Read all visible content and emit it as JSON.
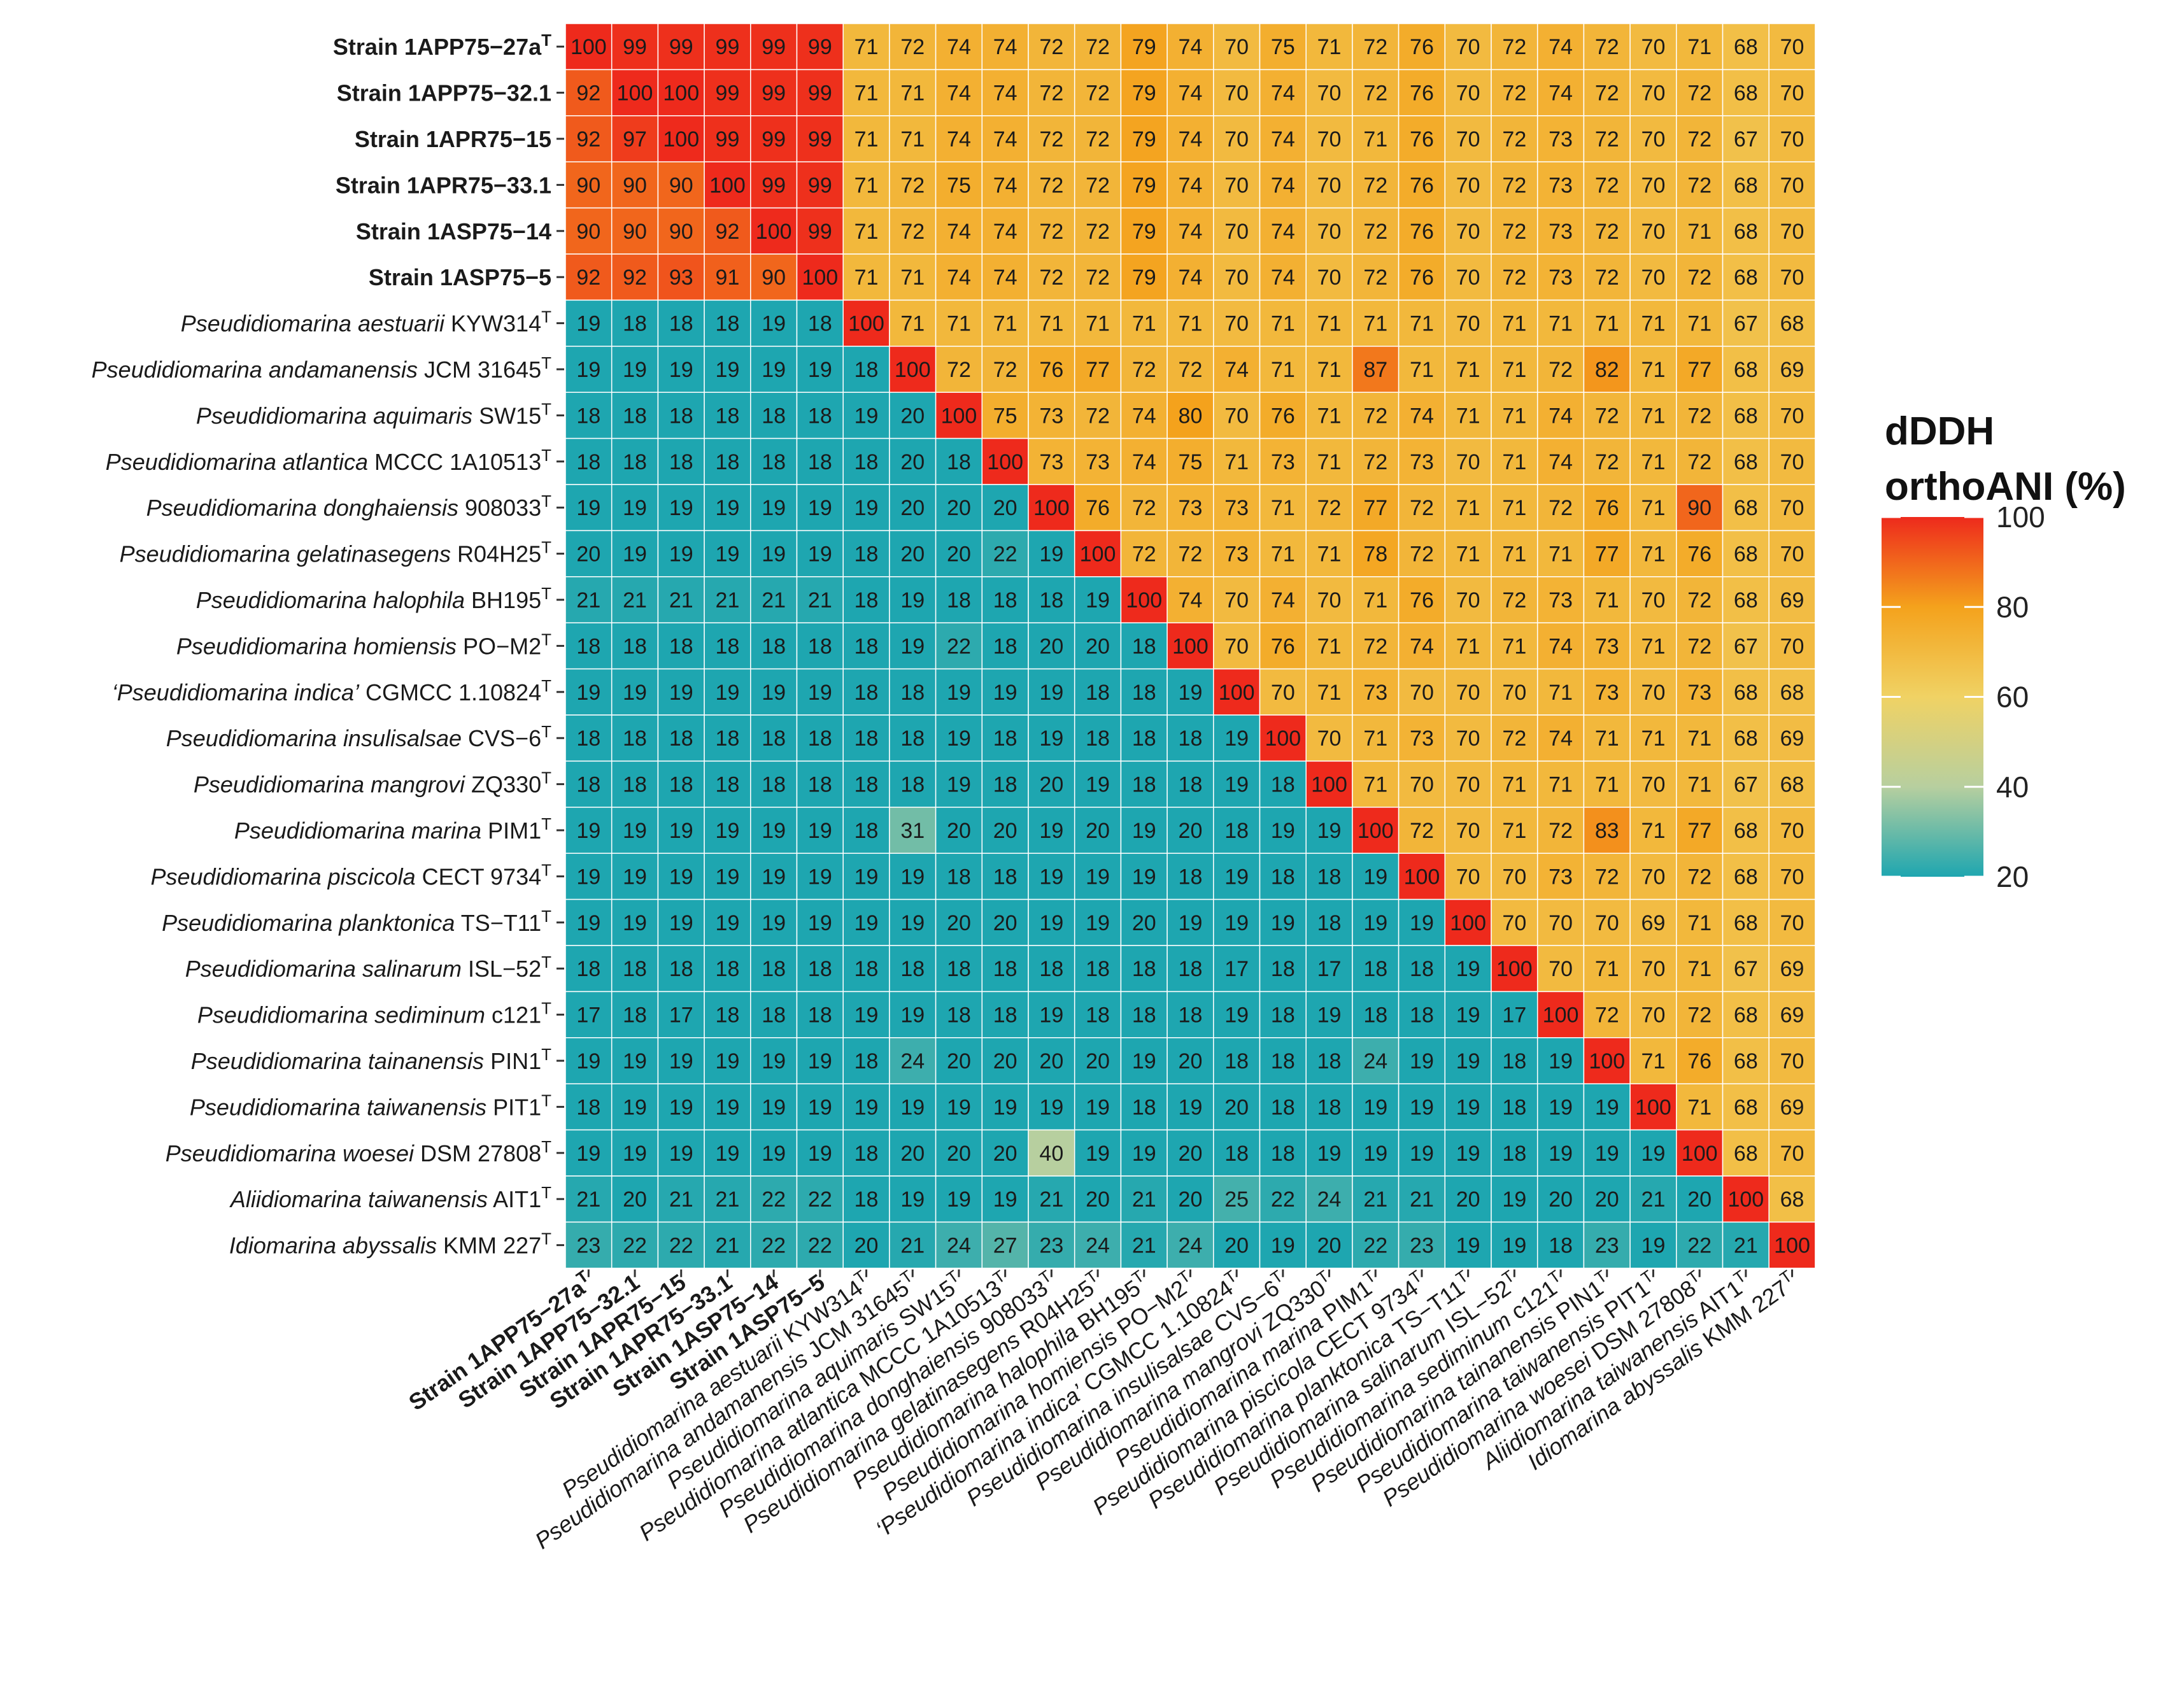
{
  "chart_data": {
    "type": "heatmap",
    "legend": {
      "title_line1": "dDDH",
      "title_line2": "orthoANI (%)",
      "ticks": [
        100,
        80,
        60,
        40,
        20
      ],
      "range": [
        20,
        100
      ],
      "placement": "right"
    },
    "colors": {
      "low": "#1ea6b0",
      "mid_low": "#b7cf9f",
      "mid": "#f0d264",
      "mid_high": "#f4a21c",
      "high": "#ee2a1c",
      "grid": "#ffffff",
      "tick": "#333333"
    },
    "labels": [
      {
        "genus": "",
        "epithet": "",
        "strain": "Strain 1APP75−27a",
        "sup": "T",
        "bold": true
      },
      {
        "genus": "",
        "epithet": "",
        "strain": "Strain 1APP75−32.1",
        "sup": "",
        "bold": true
      },
      {
        "genus": "",
        "epithet": "",
        "strain": "Strain 1APR75−15",
        "sup": "",
        "bold": true
      },
      {
        "genus": "",
        "epithet": "",
        "strain": "Strain 1APR75−33.1",
        "sup": "",
        "bold": true
      },
      {
        "genus": "",
        "epithet": "",
        "strain": "Strain 1ASP75−14",
        "sup": "",
        "bold": true
      },
      {
        "genus": "",
        "epithet": "",
        "strain": "Strain 1ASP75−5",
        "sup": "",
        "bold": true
      },
      {
        "genus": "Pseudidiomarina",
        "epithet": "aestuarii",
        "strain": "KYW314",
        "sup": "T",
        "bold": false
      },
      {
        "genus": "Pseudidiomarina",
        "epithet": "andamanensis",
        "strain": "JCM 31645",
        "sup": "T",
        "bold": false
      },
      {
        "genus": "Pseudidiomarina",
        "epithet": "aquimaris",
        "strain": "SW15",
        "sup": "T",
        "bold": false
      },
      {
        "genus": "Pseudidiomarina",
        "epithet": "atlantica",
        "strain": "MCCC 1A10513",
        "sup": "T",
        "bold": false
      },
      {
        "genus": "Pseudidiomarina",
        "epithet": "donghaiensis",
        "strain": "908033",
        "sup": "T",
        "bold": false
      },
      {
        "genus": "Pseudidiomarina",
        "epithet": "gelatinasegens",
        "strain": "R04H25",
        "sup": "T",
        "bold": false
      },
      {
        "genus": "Pseudidiomarina",
        "epithet": "halophila",
        "strain": "BH195",
        "sup": "T",
        "bold": false
      },
      {
        "genus": "Pseudidiomarina",
        "epithet": "homiensis",
        "strain": "PO−M2",
        "sup": "T",
        "bold": false
      },
      {
        "genus": "‘Pseudidiomarina",
        "epithet": "indica’",
        "strain": "CGMCC 1.10824",
        "sup": "T",
        "bold": false
      },
      {
        "genus": "Pseudidiomarina",
        "epithet": "insulisalsae",
        "strain": "CVS−6",
        "sup": "T",
        "bold": false
      },
      {
        "genus": "Pseudidiomarina",
        "epithet": "mangrovi",
        "strain": "ZQ330",
        "sup": "T",
        "bold": false
      },
      {
        "genus": "Pseudidiomarina",
        "epithet": "marina",
        "strain": "PIM1",
        "sup": "T",
        "bold": false
      },
      {
        "genus": "Pseudidiomarina",
        "epithet": "piscicola",
        "strain": "CECT 9734",
        "sup": "T",
        "bold": false
      },
      {
        "genus": "Pseudidiomarina",
        "epithet": "planktonica",
        "strain": "TS−T11",
        "sup": "T",
        "bold": false
      },
      {
        "genus": "Pseudidiomarina",
        "epithet": "salinarum",
        "strain": "ISL−52",
        "sup": "T",
        "bold": false
      },
      {
        "genus": "Pseudidiomarina",
        "epithet": "sediminum",
        "strain": "c121",
        "sup": "T",
        "bold": false
      },
      {
        "genus": "Pseudidiomarina",
        "epithet": "tainanensis",
        "strain": "PIN1",
        "sup": "T",
        "bold": false
      },
      {
        "genus": "Pseudidiomarina",
        "epithet": "taiwanensis",
        "strain": "PIT1",
        "sup": "T",
        "bold": false
      },
      {
        "genus": "Pseudidiomarina",
        "epithet": "woesei",
        "strain": "DSM 27808",
        "sup": "T",
        "bold": false
      },
      {
        "genus": "Aliidiomarina",
        "epithet": "taiwanensis",
        "strain": "AIT1",
        "sup": "T",
        "bold": false
      },
      {
        "genus": "Idiomarina",
        "epithet": "abyssalis",
        "strain": "KMM 227",
        "sup": "T",
        "bold": false
      }
    ],
    "values": [
      [
        100,
        99,
        99,
        99,
        99,
        99,
        71,
        72,
        74,
        74,
        72,
        72,
        79,
        74,
        70,
        75,
        71,
        72,
        76,
        70,
        72,
        74,
        72,
        70,
        71,
        68,
        70
      ],
      [
        92,
        100,
        100,
        99,
        99,
        99,
        71,
        71,
        74,
        74,
        72,
        72,
        79,
        74,
        70,
        74,
        70,
        72,
        76,
        70,
        72,
        74,
        72,
        70,
        72,
        68,
        70
      ],
      [
        92,
        97,
        100,
        99,
        99,
        99,
        71,
        71,
        74,
        74,
        72,
        72,
        79,
        74,
        70,
        74,
        70,
        71,
        76,
        70,
        72,
        73,
        72,
        70,
        72,
        67,
        70
      ],
      [
        90,
        90,
        90,
        100,
        99,
        99,
        71,
        72,
        75,
        74,
        72,
        72,
        79,
        74,
        70,
        74,
        70,
        72,
        76,
        70,
        72,
        73,
        72,
        70,
        72,
        68,
        70
      ],
      [
        90,
        90,
        90,
        92,
        100,
        99,
        71,
        72,
        74,
        74,
        72,
        72,
        79,
        74,
        70,
        74,
        70,
        72,
        76,
        70,
        72,
        73,
        72,
        70,
        71,
        68,
        70
      ],
      [
        92,
        92,
        93,
        91,
        90,
        100,
        71,
        71,
        74,
        74,
        72,
        72,
        79,
        74,
        70,
        74,
        70,
        72,
        76,
        70,
        72,
        73,
        72,
        70,
        72,
        68,
        70
      ],
      [
        19,
        18,
        18,
        18,
        19,
        18,
        100,
        71,
        71,
        71,
        71,
        71,
        71,
        71,
        70,
        71,
        71,
        71,
        71,
        70,
        71,
        71,
        71,
        71,
        71,
        67,
        68
      ],
      [
        19,
        19,
        19,
        19,
        19,
        19,
        18,
        100,
        72,
        72,
        76,
        77,
        72,
        72,
        74,
        71,
        71,
        87,
        71,
        71,
        71,
        72,
        82,
        71,
        77,
        68,
        69
      ],
      [
        18,
        18,
        18,
        18,
        18,
        18,
        19,
        20,
        100,
        75,
        73,
        72,
        74,
        80,
        70,
        76,
        71,
        72,
        74,
        71,
        71,
        74,
        72,
        71,
        72,
        68,
        70
      ],
      [
        18,
        18,
        18,
        18,
        18,
        18,
        18,
        20,
        18,
        100,
        73,
        73,
        74,
        75,
        71,
        73,
        71,
        72,
        73,
        70,
        71,
        74,
        72,
        71,
        72,
        68,
        70
      ],
      [
        19,
        19,
        19,
        19,
        19,
        19,
        19,
        20,
        20,
        20,
        100,
        76,
        72,
        73,
        73,
        71,
        72,
        77,
        72,
        71,
        71,
        72,
        76,
        71,
        90,
        68,
        70
      ],
      [
        20,
        19,
        19,
        19,
        19,
        19,
        18,
        20,
        20,
        22,
        19,
        100,
        72,
        72,
        73,
        71,
        71,
        78,
        72,
        71,
        71,
        71,
        77,
        71,
        76,
        68,
        70
      ],
      [
        21,
        21,
        21,
        21,
        21,
        21,
        18,
        19,
        18,
        18,
        18,
        19,
        100,
        74,
        70,
        74,
        70,
        71,
        76,
        70,
        72,
        73,
        71,
        70,
        72,
        68,
        69
      ],
      [
        18,
        18,
        18,
        18,
        18,
        18,
        18,
        19,
        22,
        18,
        20,
        20,
        18,
        100,
        70,
        76,
        71,
        72,
        74,
        71,
        71,
        74,
        73,
        71,
        72,
        67,
        70
      ],
      [
        19,
        19,
        19,
        19,
        19,
        19,
        18,
        18,
        19,
        19,
        19,
        18,
        18,
        19,
        100,
        70,
        71,
        73,
        70,
        70,
        70,
        71,
        73,
        70,
        73,
        68,
        68
      ],
      [
        18,
        18,
        18,
        18,
        18,
        18,
        18,
        18,
        19,
        18,
        19,
        18,
        18,
        18,
        19,
        100,
        70,
        71,
        73,
        70,
        72,
        74,
        71,
        71,
        71,
        68,
        69
      ],
      [
        18,
        18,
        18,
        18,
        18,
        18,
        18,
        18,
        19,
        18,
        20,
        19,
        18,
        18,
        19,
        18,
        100,
        71,
        70,
        70,
        71,
        71,
        71,
        70,
        71,
        67,
        68
      ],
      [
        19,
        19,
        19,
        19,
        19,
        19,
        18,
        31,
        20,
        20,
        19,
        20,
        19,
        20,
        18,
        19,
        19,
        100,
        72,
        70,
        71,
        72,
        83,
        71,
        77,
        68,
        70
      ],
      [
        19,
        19,
        19,
        19,
        19,
        19,
        19,
        19,
        18,
        18,
        19,
        19,
        19,
        18,
        19,
        18,
        18,
        19,
        100,
        70,
        70,
        73,
        72,
        70,
        72,
        68,
        70
      ],
      [
        19,
        19,
        19,
        19,
        19,
        19,
        19,
        19,
        20,
        20,
        19,
        19,
        20,
        19,
        19,
        19,
        18,
        19,
        19,
        100,
        70,
        70,
        70,
        69,
        71,
        68,
        70
      ],
      [
        18,
        18,
        18,
        18,
        18,
        18,
        18,
        18,
        18,
        18,
        18,
        18,
        18,
        18,
        17,
        18,
        17,
        18,
        18,
        19,
        100,
        70,
        71,
        70,
        71,
        67,
        69
      ],
      [
        17,
        18,
        17,
        18,
        18,
        18,
        19,
        19,
        18,
        18,
        19,
        18,
        18,
        18,
        19,
        18,
        19,
        18,
        18,
        19,
        17,
        100,
        72,
        70,
        72,
        68,
        69
      ],
      [
        19,
        19,
        19,
        19,
        19,
        19,
        18,
        24,
        20,
        20,
        20,
        20,
        19,
        20,
        18,
        18,
        18,
        24,
        19,
        19,
        18,
        19,
        100,
        71,
        76,
        68,
        70
      ],
      [
        18,
        19,
        19,
        19,
        19,
        19,
        19,
        19,
        19,
        19,
        19,
        19,
        18,
        19,
        20,
        18,
        18,
        19,
        19,
        19,
        18,
        19,
        19,
        100,
        71,
        68,
        69
      ],
      [
        19,
        19,
        19,
        19,
        19,
        19,
        18,
        20,
        20,
        20,
        40,
        19,
        19,
        20,
        18,
        18,
        19,
        19,
        19,
        19,
        18,
        19,
        19,
        19,
        100,
        68,
        70
      ],
      [
        21,
        20,
        21,
        21,
        22,
        22,
        18,
        19,
        19,
        19,
        21,
        20,
        21,
        20,
        25,
        22,
        24,
        21,
        21,
        20,
        19,
        20,
        20,
        21,
        20,
        100,
        68
      ],
      [
        23,
        22,
        22,
        21,
        22,
        22,
        20,
        21,
        24,
        27,
        23,
        24,
        21,
        24,
        20,
        19,
        20,
        22,
        23,
        19,
        19,
        18,
        23,
        19,
        22,
        21,
        100
      ]
    ]
  }
}
